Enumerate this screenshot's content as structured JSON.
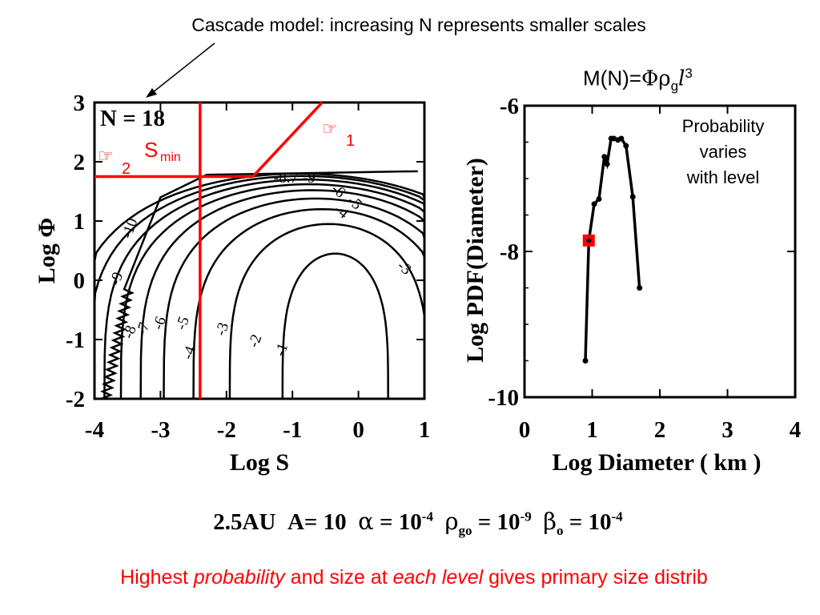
{
  "header": {
    "title": "Cascade model: increasing N represents smaller scales",
    "formula_lhs": "M(N)=",
    "formula_phi": "Φ",
    "formula_rho": "ρ",
    "formula_sub": "g",
    "formula_l": "l",
    "formula_sup": "3"
  },
  "side_note": [
    "Probability",
    "varies",
    "with level"
  ],
  "params": {
    "distance": "2.5AU",
    "a_label": "A= 10",
    "alpha": "α",
    "alpha_eq": " = 10",
    "alpha_exp": "-4",
    "rho": "ρ",
    "rho_sub": "go",
    "rho_eq": " = 10",
    "rho_exp": "-9",
    "beta": "β",
    "beta_sub": "o",
    "beta_eq": " = 10",
    "beta_exp": "-4"
  },
  "footer": {
    "part1": "Highest ",
    "part2": "probability",
    "part3": " and size at ",
    "part4": "each level",
    "part5": " gives primary size distrib"
  },
  "colors": {
    "annotation": "#ff0000",
    "ink": "#000000"
  },
  "chart_data": [
    {
      "type": "contour",
      "panel_label": "N = 18",
      "xlabel": "Log S",
      "ylabel": "Log Φ",
      "xlim": [
        -4,
        1
      ],
      "ylim": [
        -2,
        3
      ],
      "xticks": [
        "-4",
        "-3",
        "-2",
        "-1",
        "0",
        "1"
      ],
      "yticks": [
        "-2",
        "-1",
        "0",
        "1",
        "2",
        "3"
      ],
      "contour_levels": [
        "-1",
        "-2",
        "-3",
        "-4",
        "-5",
        "-6",
        "-7",
        "-8",
        "-9",
        "-10"
      ],
      "peak_labels": [
        "-8.7",
        "-9"
      ],
      "upper_right_labels": [
        "-6",
        "-5",
        "-4",
        "-3"
      ],
      "annotations": {
        "s_min_label": "S",
        "s_min_sub": "min",
        "s_min_x": -2.4,
        "marker_1": "☞",
        "marker_1_num": "1",
        "marker_2": "☞",
        "marker_2_num": "2",
        "boundary_phi": 1.75
      }
    },
    {
      "type": "line",
      "xlabel": "Log Diameter ( km )",
      "ylabel": "Log PDF(Diameter)",
      "xlim": [
        0,
        4
      ],
      "ylim": [
        -10,
        -6
      ],
      "xticks": [
        "0",
        "1",
        "2",
        "3",
        "4"
      ],
      "yticks": [
        "-6",
        "-8",
        "-10"
      ],
      "series": [
        {
          "x": [
            0.9,
            0.95,
            1.03,
            1.1,
            1.18,
            1.22,
            1.28,
            1.32,
            1.38,
            1.43,
            1.5,
            1.6,
            1.7
          ],
          "y": [
            -9.5,
            -7.85,
            -7.35,
            -7.28,
            -6.7,
            -6.8,
            -6.45,
            -6.45,
            -6.47,
            -6.45,
            -6.55,
            -7.25,
            -8.5
          ]
        }
      ],
      "highlight": {
        "x": 0.95,
        "y": -7.85
      }
    }
  ]
}
